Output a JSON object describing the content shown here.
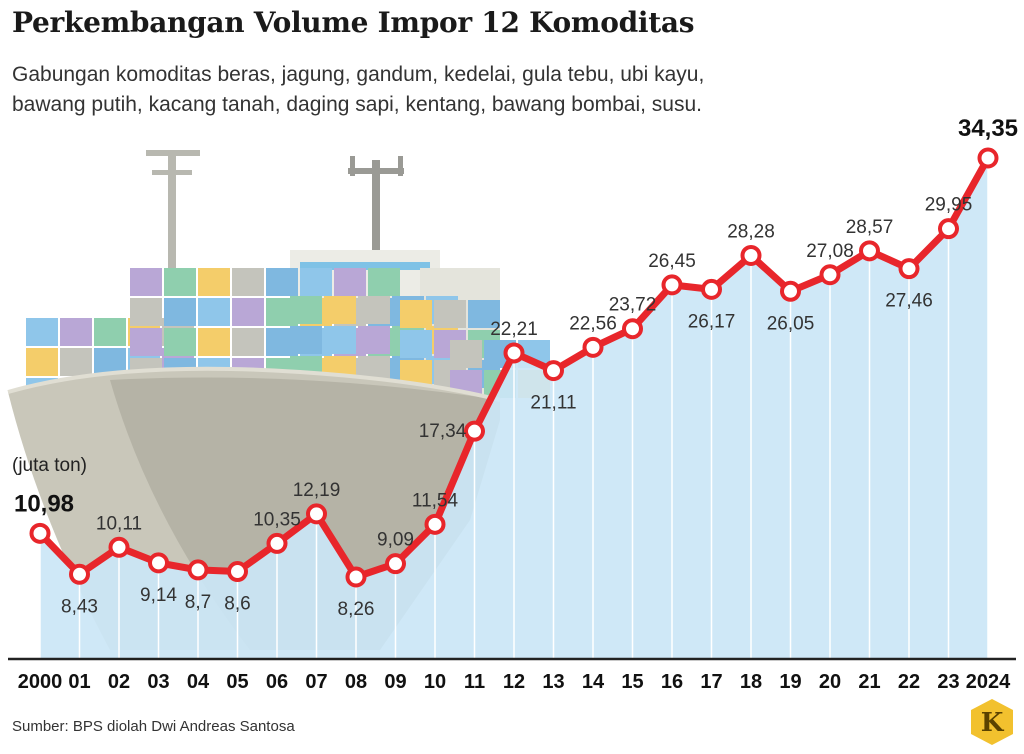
{
  "title": "Perkembangan Volume Impor 12 Komoditas",
  "subtitle": [
    "Gabungan komoditas beras, jagung, gandum, kedelai, gula tebu, ubi kayu,",
    "bawang putih, kacang tanah, daging sapi, kentang, bawang bombai, susu."
  ],
  "source": "Sumber: BPS diolah Dwi Andreas Santosa",
  "logo_letter": "K",
  "colors": {
    "line": "#e8262b",
    "area": "#cbe6f6",
    "area_line": "#ffffff",
    "logo": "#f2c12e"
  },
  "chart_data": {
    "type": "line",
    "unit_label": "(juta ton)",
    "x": [
      "2000",
      "01",
      "02",
      "03",
      "04",
      "05",
      "06",
      "07",
      "08",
      "09",
      "10",
      "11",
      "12",
      "13",
      "14",
      "15",
      "16",
      "17",
      "18",
      "19",
      "20",
      "21",
      "22",
      "23",
      "2024"
    ],
    "values": [
      10.98,
      8.43,
      10.11,
      9.14,
      8.7,
      8.6,
      10.35,
      12.19,
      8.26,
      9.09,
      11.54,
      17.34,
      22.21,
      21.11,
      22.56,
      23.72,
      26.45,
      26.17,
      28.28,
      26.05,
      27.08,
      28.57,
      27.46,
      29.95,
      34.35
    ],
    "data_labels": [
      "10,98",
      "8,43",
      "10,11",
      "9,14",
      "8,7",
      "8,6",
      "10,35",
      "12,19",
      "8,26",
      "9,09",
      "11,54",
      "17,34",
      "22,21",
      "21,11",
      "22,56",
      "23,72",
      "26,45",
      "26,17",
      "28,28",
      "26,05",
      "27,08",
      "28,57",
      "27,46",
      "29,95",
      "34,35"
    ],
    "label_position": [
      "above",
      "below",
      "above",
      "below",
      "below",
      "below",
      "above",
      "above",
      "below",
      "above",
      "above",
      "left",
      "above",
      "below",
      "above",
      "above",
      "above",
      "below",
      "above",
      "below",
      "above",
      "above",
      "below",
      "above",
      "above"
    ],
    "ylim": [
      0,
      34.35
    ]
  }
}
